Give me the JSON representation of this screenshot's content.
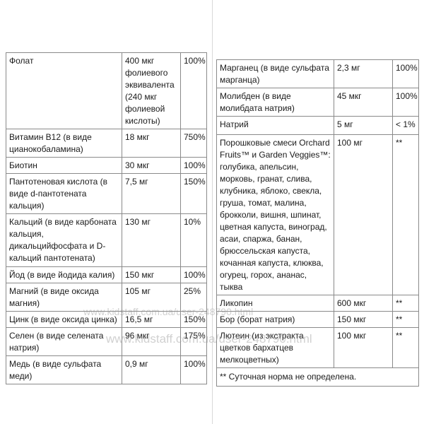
{
  "left_table": {
    "rows": [
      {
        "name": "Фолат",
        "amount": "400 мкг фолиевого эквивалента (240 мкг фолиевой кислоты)",
        "dv": "100%"
      },
      {
        "name": "Витамин B12 (в виде цианокобаламина)",
        "amount": "18 мкг",
        "dv": "750%"
      },
      {
        "name": "Биотин",
        "amount": "30 мкг",
        "dv": "100%"
      },
      {
        "name": "Пантотеновая кислота (в виде d-пантотената кальция)",
        "amount": "7,5 мг",
        "dv": "150%"
      },
      {
        "name": "Кальций (в виде карбоната кальция, дикальцийфосфата и D-кальций пантотената)",
        "amount": "130 мг",
        "dv": "10%"
      },
      {
        "name": "Йод (в виде йодида калия)",
        "amount": "150 мкг",
        "dv": "100%"
      },
      {
        "name": "Магний (в виде оксида магния)",
        "amount": "105 мг",
        "dv": "25%"
      },
      {
        "name": "Цинк (в виде оксида цинка)",
        "amount": "16,5 мг",
        "dv": "150%"
      },
      {
        "name": "Селен (в виде селената натрия)",
        "amount": "96 мкг",
        "dv": "175%"
      },
      {
        "name": "Медь (в виде сульфата меди)",
        "amount": "0,9 мг",
        "dv": "100%"
      }
    ]
  },
  "right_table": {
    "rows": [
      {
        "name": "Марганец (в виде сульфата марганца)",
        "amount": "2,3 мг",
        "dv": "100%"
      },
      {
        "name": "Молибден (в виде молибдата натрия)",
        "amount": "45 мкг",
        "dv": "100%"
      },
      {
        "name": "Натрий",
        "amount": "5 мг",
        "dv": "< 1%"
      },
      {
        "name": "Порошковые смеси Orchard Fruits™ и Garden Veggies™: голубика, апельсин, морковь, гранат, слива, клубника, яблоко, свекла, груша, томат, малина, брокколи, вишня, шпинат, цветная капуста, виноград, асаи, спаржа, банан, брюссельская капуста, кочанная капуста, клюква, огурец, горох, ананас, тыква",
        "amount": "100 мг",
        "dv": "**"
      },
      {
        "name": "Ликопин",
        "amount": "600 мкг",
        "dv": "**"
      },
      {
        "name": "Бор (борат натрия)",
        "amount": "150 мкг",
        "dv": "**"
      },
      {
        "name": "Лютеин (из экстракта цветков бархатцев мелкоцветных)",
        "amount": "100 мкг",
        "dv": "**"
      }
    ],
    "footnote": "** Суточная норма не определена."
  },
  "watermark": {
    "text1": "www.kidstaff.com.ua/user-248790.html",
    "text2": "www.kidstaff.com.ua/user-248790.html"
  }
}
